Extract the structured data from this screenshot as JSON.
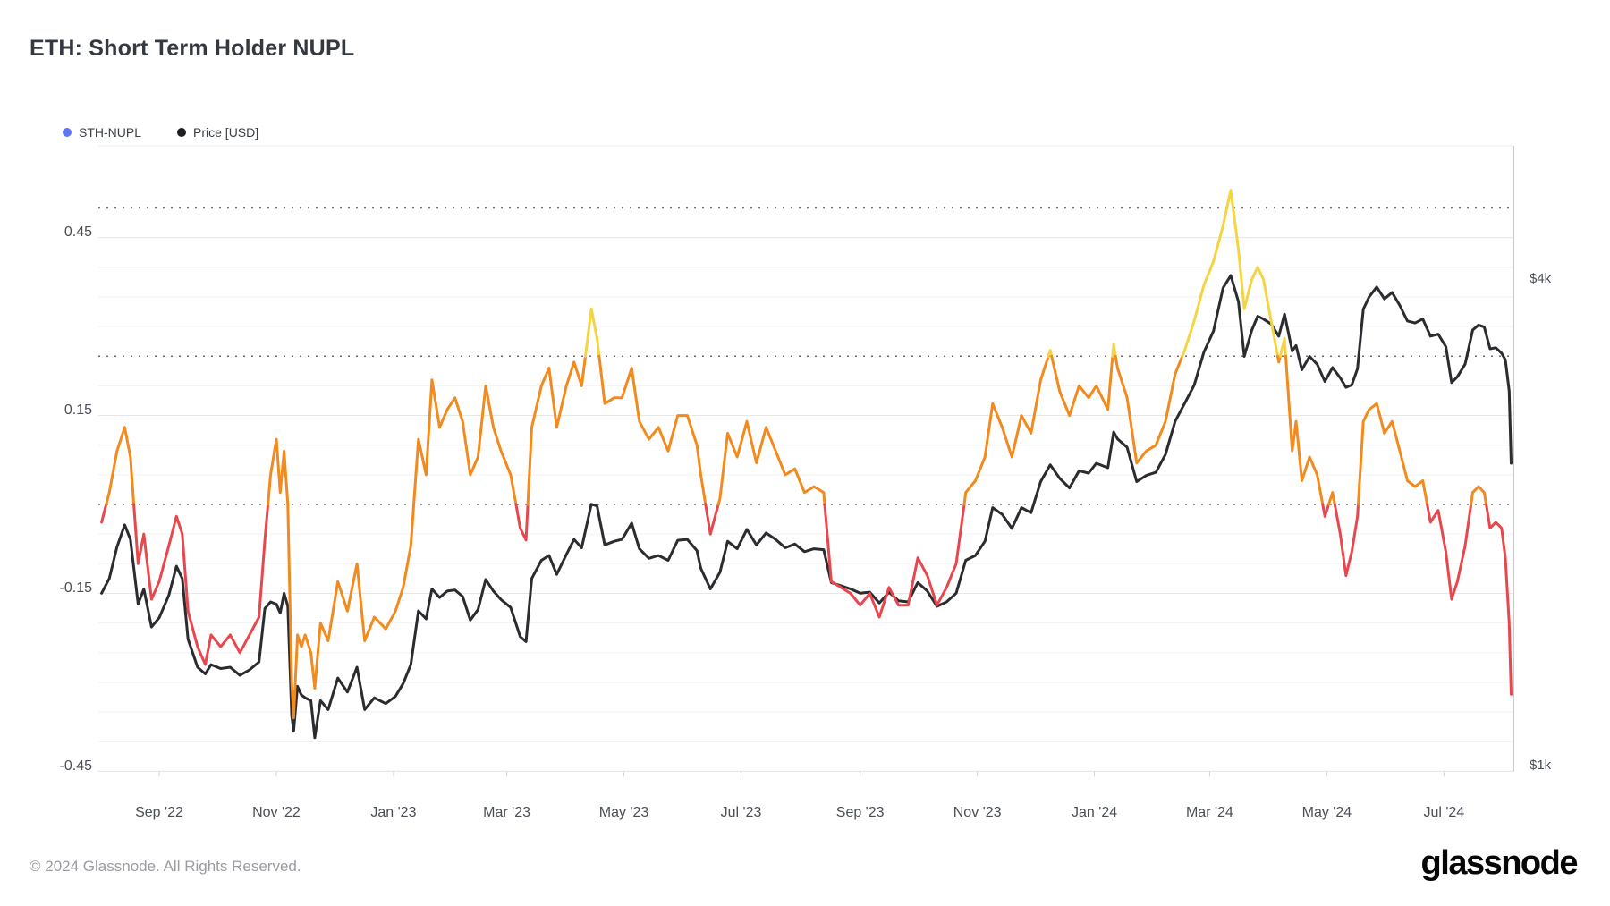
{
  "header": {
    "title": "ETH: Short Term Holder NUPL"
  },
  "legend": {
    "items": [
      {
        "label": "STH-NUPL",
        "marker_color": "#6273f4"
      },
      {
        "label": "Price [USD]",
        "marker_color": "#1d1e21"
      }
    ]
  },
  "footer": {
    "copyright": "© 2024 Glassnode. All Rights Reserved.",
    "brand": "glassnode"
  },
  "colors": {
    "price_line": "#2b2c30",
    "nupl_red": "#e9474e",
    "nupl_orange": "#f28a1d",
    "nupl_yellow": "#f5d444",
    "grid_minor": "#f2f2f2",
    "grid_major": "#e7e7e7",
    "grid_bottom": "#e0e0e0",
    "dotted_line": "#707070",
    "plot_border_top": "#ededed",
    "plot_border_right": "#b8b8b8",
    "tick_mark": "#d4d4d4",
    "axis_label": "#4a4e55"
  },
  "axes": {
    "y_left": {
      "tick_labels": [
        "0.45",
        "0.15",
        "-0.15",
        "-0.45"
      ],
      "tick_values": [
        0.45,
        0.15,
        -0.15,
        -0.45
      ],
      "dotted_levels": [
        0.5,
        0.25,
        0
      ],
      "minor_step": 0.05
    },
    "y_right": {
      "tick_labels": [
        "$4k",
        "$1k"
      ],
      "tick_values": [
        4000,
        1000
      ],
      "scale": "log"
    },
    "x": {
      "labels": [
        "Sep '22",
        "Nov '22",
        "Jan '23",
        "Mar '23",
        "May '23",
        "Jul '23",
        "Sep '23",
        "Nov '23",
        "Jan '24",
        "Mar '24",
        "May '24",
        "Jul '24"
      ],
      "label_dates": [
        "2022-09-01",
        "2022-11-01",
        "2023-01-01",
        "2023-03-01",
        "2023-05-01",
        "2023-07-01",
        "2023-09-01",
        "2023-11-01",
        "2024-01-01",
        "2024-03-01",
        "2024-05-01",
        "2024-07-01"
      ]
    }
  },
  "chart_data": {
    "type": "line",
    "title": "ETH: Short Term Holder NUPL",
    "x_unit": "date",
    "legend_position": "top-left",
    "grid": "horizontal-only",
    "x": [
      "2022-08-02",
      "2022-08-06",
      "2022-08-10",
      "2022-08-14",
      "2022-08-17",
      "2022-08-21",
      "2022-08-24",
      "2022-08-28",
      "2022-09-01",
      "2022-09-06",
      "2022-09-10",
      "2022-09-13",
      "2022-09-16",
      "2022-09-21",
      "2022-09-25",
      "2022-09-28",
      "2022-10-03",
      "2022-10-08",
      "2022-10-13",
      "2022-10-18",
      "2022-10-23",
      "2022-10-26",
      "2022-10-29",
      "2022-11-01",
      "2022-11-03",
      "2022-11-05",
      "2022-11-07",
      "2022-11-09",
      "2022-11-10",
      "2022-11-12",
      "2022-11-14",
      "2022-11-16",
      "2022-11-19",
      "2022-11-21",
      "2022-11-24",
      "2022-11-28",
      "2022-12-03",
      "2022-12-08",
      "2022-12-13",
      "2022-12-17",
      "2022-12-22",
      "2022-12-28",
      "2023-01-02",
      "2023-01-06",
      "2023-01-10",
      "2023-01-14",
      "2023-01-18",
      "2023-01-21",
      "2023-01-25",
      "2023-01-29",
      "2023-02-02",
      "2023-02-06",
      "2023-02-10",
      "2023-02-14",
      "2023-02-18",
      "2023-02-22",
      "2023-02-26",
      "2023-03-03",
      "2023-03-08",
      "2023-03-11",
      "2023-03-14",
      "2023-03-19",
      "2023-03-23",
      "2023-03-27",
      "2023-04-01",
      "2023-04-05",
      "2023-04-09",
      "2023-04-14",
      "2023-04-17",
      "2023-04-21",
      "2023-04-26",
      "2023-04-30",
      "2023-05-05",
      "2023-05-09",
      "2023-05-14",
      "2023-05-19",
      "2023-05-24",
      "2023-05-29",
      "2023-06-03",
      "2023-06-08",
      "2023-06-10",
      "2023-06-15",
      "2023-06-20",
      "2023-06-24",
      "2023-06-29",
      "2023-07-04",
      "2023-07-09",
      "2023-07-14",
      "2023-07-19",
      "2023-07-24",
      "2023-07-29",
      "2023-08-03",
      "2023-08-08",
      "2023-08-13",
      "2023-08-17",
      "2023-08-22",
      "2023-08-27",
      "2023-09-01",
      "2023-09-06",
      "2023-09-11",
      "2023-09-16",
      "2023-09-21",
      "2023-09-26",
      "2023-10-01",
      "2023-10-06",
      "2023-10-11",
      "2023-10-16",
      "2023-10-21",
      "2023-10-26",
      "2023-10-31",
      "2023-11-05",
      "2023-11-09",
      "2023-11-14",
      "2023-11-19",
      "2023-11-24",
      "2023-11-29",
      "2023-12-04",
      "2023-12-09",
      "2023-12-14",
      "2023-12-19",
      "2023-12-24",
      "2023-12-29",
      "2024-01-02",
      "2024-01-08",
      "2024-01-11",
      "2024-01-13",
      "2024-01-18",
      "2024-01-23",
      "2024-01-28",
      "2024-02-02",
      "2024-02-07",
      "2024-02-12",
      "2024-02-17",
      "2024-02-22",
      "2024-02-27",
      "2024-03-03",
      "2024-03-08",
      "2024-03-12",
      "2024-03-16",
      "2024-03-19",
      "2024-03-23",
      "2024-03-26",
      "2024-03-29",
      "2024-04-02",
      "2024-04-06",
      "2024-04-09",
      "2024-04-13",
      "2024-04-15",
      "2024-04-18",
      "2024-04-22",
      "2024-04-26",
      "2024-04-30",
      "2024-05-04",
      "2024-05-08",
      "2024-05-11",
      "2024-05-14",
      "2024-05-17",
      "2024-05-20",
      "2024-05-23",
      "2024-05-27",
      "2024-05-31",
      "2024-06-04",
      "2024-06-08",
      "2024-06-12",
      "2024-06-16",
      "2024-06-20",
      "2024-06-24",
      "2024-06-28",
      "2024-07-02",
      "2024-07-05",
      "2024-07-08",
      "2024-07-12",
      "2024-07-16",
      "2024-07-19",
      "2024-07-22",
      "2024-07-25",
      "2024-07-28",
      "2024-07-31",
      "2024-08-02",
      "2024-08-04",
      "2024-08-05"
    ],
    "series": [
      {
        "name": "STH-NUPL",
        "axis": "left",
        "zone_thresholds": [
          0,
          0.25
        ],
        "zone_colors": [
          "#e9474e",
          "#f28a1d",
          "#f5d444"
        ],
        "values": [
          -0.03,
          0.02,
          0.09,
          0.13,
          0.08,
          -0.1,
          -0.05,
          -0.16,
          -0.13,
          -0.07,
          -0.02,
          -0.05,
          -0.18,
          -0.24,
          -0.27,
          -0.22,
          -0.24,
          -0.22,
          -0.25,
          -0.22,
          -0.19,
          -0.06,
          0.05,
          0.11,
          0.02,
          0.09,
          0.0,
          -0.3,
          -0.36,
          -0.22,
          -0.24,
          -0.22,
          -0.25,
          -0.31,
          -0.2,
          -0.23,
          -0.13,
          -0.18,
          -0.1,
          -0.23,
          -0.19,
          -0.21,
          -0.18,
          -0.14,
          -0.07,
          0.11,
          0.05,
          0.21,
          0.13,
          0.16,
          0.18,
          0.14,
          0.05,
          0.08,
          0.2,
          0.13,
          0.09,
          0.05,
          -0.04,
          -0.06,
          0.13,
          0.2,
          0.23,
          0.13,
          0.2,
          0.24,
          0.2,
          0.33,
          0.28,
          0.17,
          0.18,
          0.18,
          0.23,
          0.14,
          0.11,
          0.13,
          0.09,
          0.15,
          0.15,
          0.1,
          0.05,
          -0.05,
          0.01,
          0.12,
          0.08,
          0.14,
          0.07,
          0.13,
          0.09,
          0.05,
          0.06,
          0.02,
          0.03,
          0.02,
          -0.13,
          -0.14,
          -0.15,
          -0.17,
          -0.15,
          -0.19,
          -0.14,
          -0.17,
          -0.17,
          -0.09,
          -0.12,
          -0.17,
          -0.14,
          -0.1,
          0.02,
          0.04,
          0.08,
          0.17,
          0.13,
          0.08,
          0.15,
          0.12,
          0.21,
          0.26,
          0.19,
          0.15,
          0.2,
          0.18,
          0.2,
          0.16,
          0.27,
          0.23,
          0.18,
          0.07,
          0.09,
          0.1,
          0.14,
          0.22,
          0.26,
          0.31,
          0.37,
          0.41,
          0.47,
          0.53,
          0.43,
          0.33,
          0.38,
          0.4,
          0.38,
          0.31,
          0.24,
          0.28,
          0.09,
          0.14,
          0.04,
          0.08,
          0.05,
          -0.02,
          0.02,
          -0.05,
          -0.12,
          -0.08,
          -0.02,
          0.14,
          0.16,
          0.17,
          0.12,
          0.14,
          0.09,
          0.04,
          0.03,
          0.04,
          -0.03,
          -0.01,
          -0.08,
          -0.16,
          -0.13,
          -0.07,
          0.02,
          0.03,
          0.02,
          -0.04,
          -0.03,
          -0.04,
          -0.09,
          -0.2,
          -0.32
        ]
      },
      {
        "name": "Price [USD]",
        "axis": "right",
        "color": "#2b2c30",
        "values": [
          1630,
          1700,
          1860,
          1980,
          1900,
          1580,
          1650,
          1480,
          1520,
          1620,
          1760,
          1700,
          1430,
          1320,
          1295,
          1330,
          1315,
          1320,
          1290,
          1310,
          1340,
          1560,
          1590,
          1580,
          1540,
          1630,
          1570,
          1150,
          1100,
          1250,
          1220,
          1210,
          1200,
          1080,
          1200,
          1170,
          1280,
          1230,
          1320,
          1170,
          1210,
          1190,
          1215,
          1260,
          1330,
          1550,
          1515,
          1650,
          1610,
          1640,
          1645,
          1615,
          1510,
          1555,
          1695,
          1640,
          1600,
          1565,
          1440,
          1420,
          1700,
          1790,
          1815,
          1720,
          1820,
          1900,
          1855,
          2100,
          2090,
          1870,
          1890,
          1900,
          1990,
          1850,
          1800,
          1815,
          1790,
          1895,
          1900,
          1840,
          1750,
          1650,
          1730,
          1890,
          1850,
          1955,
          1870,
          1935,
          1900,
          1855,
          1875,
          1835,
          1850,
          1845,
          1680,
          1665,
          1650,
          1630,
          1635,
          1585,
          1635,
          1595,
          1590,
          1680,
          1640,
          1570,
          1590,
          1630,
          1790,
          1815,
          1890,
          2080,
          2040,
          1960,
          2080,
          2050,
          2240,
          2350,
          2260,
          2200,
          2310,
          2295,
          2360,
          2330,
          2580,
          2530,
          2470,
          2240,
          2280,
          2300,
          2420,
          2660,
          2800,
          2950,
          3240,
          3440,
          3890,
          4030,
          3740,
          3200,
          3450,
          3590,
          3560,
          3510,
          3390,
          3610,
          3250,
          3300,
          3080,
          3200,
          3130,
          2980,
          3100,
          3010,
          2930,
          2950,
          3090,
          3660,
          3790,
          3900,
          3770,
          3840,
          3700,
          3540,
          3520,
          3560,
          3390,
          3410,
          3290,
          2970,
          3020,
          3130,
          3450,
          3500,
          3480,
          3270,
          3280,
          3230,
          3170,
          2900,
          2360
        ]
      }
    ],
    "y_left_ticks": [
      0.45,
      0.15,
      -0.15,
      -0.45
    ],
    "y_left_dotted_reference_levels": [
      0.5,
      0.25,
      0
    ],
    "y_right_ticks_usd": [
      4000,
      1000
    ],
    "x_tick_labels": [
      "Sep '22",
      "Nov '22",
      "Jan '23",
      "Mar '23",
      "May '23",
      "Jul '23",
      "Sep '23",
      "Nov '23",
      "Jan '24",
      "Mar '24",
      "May '24",
      "Jul '24"
    ]
  }
}
